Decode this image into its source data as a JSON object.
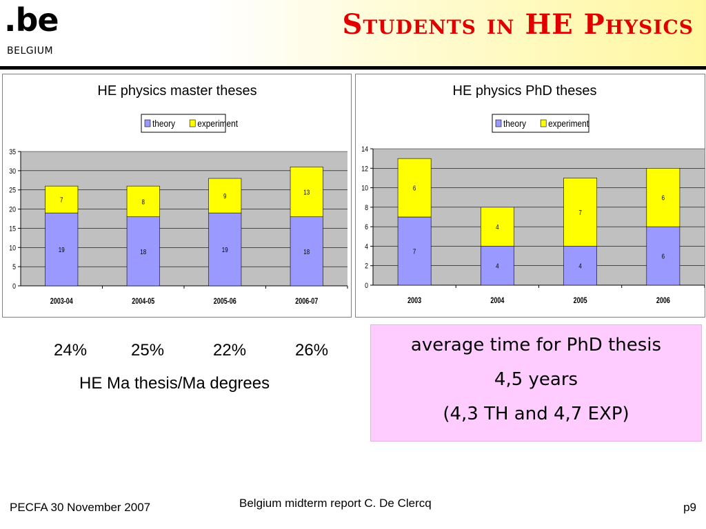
{
  "header": {
    "logo_main": ".be",
    "logo_country": "BELGIUM",
    "title": "Students in HE Physics"
  },
  "colors": {
    "title": "#e00000",
    "theory": "#9999ff",
    "experiment": "#ffff00",
    "plot_bg": "#c0c0c0",
    "info_bg": "#ffccff"
  },
  "chart_data": [
    {
      "type": "bar",
      "stacked": true,
      "title": "HE physics master theses",
      "categories": [
        "2003-04",
        "2004-05",
        "2005-06",
        "2006-07"
      ],
      "series": [
        {
          "name": "theory",
          "values": [
            19,
            18,
            19,
            18
          ]
        },
        {
          "name": "experiment",
          "values": [
            7,
            8,
            9,
            13
          ]
        }
      ],
      "ylim": [
        0,
        35
      ],
      "yticks": [
        0,
        5,
        10,
        15,
        20,
        25,
        30,
        35
      ],
      "legend": "top-center",
      "grid": true
    },
    {
      "type": "bar",
      "stacked": true,
      "title": "HE physics PhD theses",
      "categories": [
        "2003",
        "2004",
        "2005",
        "2006"
      ],
      "series": [
        {
          "name": "theory",
          "values": [
            7,
            4,
            4,
            6
          ]
        },
        {
          "name": "experiment",
          "values": [
            6,
            4,
            7,
            6
          ]
        }
      ],
      "ylim": [
        0,
        14
      ],
      "yticks": [
        0,
        2,
        4,
        6,
        8,
        10,
        12,
        14
      ],
      "legend": "top-center",
      "grid": true
    }
  ],
  "ratios": {
    "values": [
      "24%",
      "25%",
      "22%",
      "26%"
    ],
    "caption": "HE Ma thesis/Ma degrees"
  },
  "info": {
    "line1": "average time for PhD thesis",
    "line2": "4,5 years",
    "line3": "(4,3 TH and 4,7 EXP)"
  },
  "footer": {
    "left": "PECFA 30 November 2007",
    "center": "Belgium midterm report C. De Clercq",
    "right": "p9"
  }
}
